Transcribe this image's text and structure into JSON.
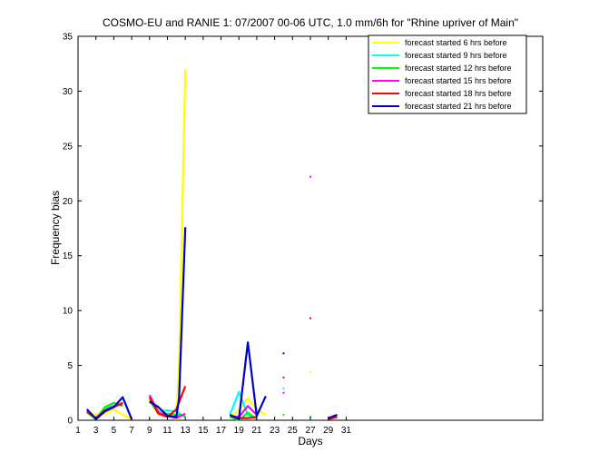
{
  "chart_data": {
    "type": "line",
    "title": "COSMO-EU and RANIE 1: 07/2007 00-06 UTC, 1.0 mm/6h for \"Rhine upriver of Main\"",
    "xlabel": "Days",
    "ylabel": "Frequency bias",
    "xlim": [
      1,
      53
    ],
    "ylim": [
      0,
      35
    ],
    "xticks": [
      1,
      3,
      5,
      7,
      9,
      11,
      13,
      15,
      17,
      19,
      21,
      23,
      25,
      27,
      29,
      31
    ],
    "yticks": [
      0,
      5,
      10,
      15,
      20,
      25,
      30,
      35
    ],
    "grid": false,
    "legend_position": "top-right",
    "series": [
      {
        "name": "forecast started 6 hrs before",
        "color": "#ffff00",
        "values": [
          [
            2,
            0.8
          ],
          [
            3,
            0.5
          ],
          [
            4,
            0.6
          ],
          [
            5,
            1.0
          ],
          [
            6,
            0.5
          ],
          [
            7,
            0.1
          ],
          [
            9,
            2.0
          ],
          [
            10,
            1.0
          ],
          [
            11,
            0.5
          ],
          [
            12,
            0.1
          ],
          [
            12.3,
            5.0
          ],
          [
            13,
            32.0
          ],
          [
            18,
            0.3
          ],
          [
            19,
            0.9
          ],
          [
            20,
            2.0
          ],
          [
            21,
            1.0
          ],
          [
            22,
            0.5
          ],
          [
            27,
            4.4
          ]
        ]
      },
      {
        "name": "forecast started 9 hrs before",
        "color": "#00ffff",
        "values": [
          [
            2,
            0.8
          ],
          [
            3,
            0.2
          ],
          [
            4,
            1.0
          ],
          [
            5,
            1.6
          ],
          [
            6,
            1.3
          ],
          [
            9,
            1.8
          ],
          [
            10,
            0.8
          ],
          [
            11,
            0.9
          ],
          [
            12,
            0.8
          ],
          [
            13,
            0.3
          ],
          [
            18,
            0.5
          ],
          [
            19,
            2.6
          ],
          [
            20,
            0.5
          ],
          [
            21,
            0.2
          ],
          [
            24,
            2.9
          ]
        ]
      },
      {
        "name": "forecast started 12 hrs before",
        "color": "#00ff00",
        "values": [
          [
            2,
            0.7
          ],
          [
            3,
            0.1
          ],
          [
            4,
            1.2
          ],
          [
            5,
            1.6
          ],
          [
            6,
            1.3
          ],
          [
            9,
            1.8
          ],
          [
            10,
            0.6
          ],
          [
            11,
            0.6
          ],
          [
            12,
            0.5
          ],
          [
            13,
            0.4
          ],
          [
            18,
            0.3
          ],
          [
            19,
            0.0
          ],
          [
            20,
            0.7
          ],
          [
            21,
            0.1
          ],
          [
            24,
            0.5
          ],
          [
            27,
            0.3
          ]
        ]
      },
      {
        "name": "forecast started 15 hrs before",
        "color": "#ff00ff",
        "values": [
          [
            2,
            0.8
          ],
          [
            3,
            0.2
          ],
          [
            4,
            0.9
          ],
          [
            5,
            1.3
          ],
          [
            6,
            1.5
          ],
          [
            9,
            2.3
          ],
          [
            10,
            0.7
          ],
          [
            11,
            0.4
          ],
          [
            12,
            0.2
          ],
          [
            13,
            0.6
          ],
          [
            18,
            0.4
          ],
          [
            19,
            0.3
          ],
          [
            20,
            1.3
          ],
          [
            21,
            0.5
          ],
          [
            24,
            2.5
          ],
          [
            27,
            22.2
          ]
        ]
      },
      {
        "name": "forecast started 18 hrs before",
        "color": "#ff0000",
        "values": [
          [
            2,
            0.8
          ],
          [
            3,
            0.2
          ],
          [
            4,
            0.9
          ],
          [
            5,
            1.2
          ],
          [
            6,
            1.6
          ],
          [
            9,
            2.1
          ],
          [
            10,
            0.6
          ],
          [
            11,
            0.3
          ],
          [
            12,
            1.0
          ],
          [
            13,
            3.1
          ],
          [
            18,
            0.4
          ],
          [
            19,
            0.2
          ],
          [
            20,
            0.2
          ],
          [
            21,
            0.3
          ],
          [
            24,
            3.9
          ],
          [
            27,
            9.3
          ],
          [
            29,
            0.1
          ],
          [
            30,
            0.3
          ]
        ]
      },
      {
        "name": "forecast started 21 hrs before",
        "color": "#0000cc",
        "values": [
          [
            2,
            1.0
          ],
          [
            3,
            0.1
          ],
          [
            4,
            0.8
          ],
          [
            5,
            1.2
          ],
          [
            6,
            2.1
          ],
          [
            7,
            0.1
          ],
          [
            9,
            1.7
          ],
          [
            10,
            1.2
          ],
          [
            11,
            0.4
          ],
          [
            12,
            0.3
          ],
          [
            12.3,
            2.0
          ],
          [
            13,
            17.6
          ],
          [
            18,
            0.5
          ],
          [
            19,
            0.1
          ],
          [
            20,
            7.1
          ],
          [
            21,
            0.4
          ],
          [
            22,
            2.2
          ],
          [
            24,
            6.1
          ],
          [
            29,
            0.2
          ],
          [
            30,
            0.5
          ]
        ]
      }
    ]
  }
}
